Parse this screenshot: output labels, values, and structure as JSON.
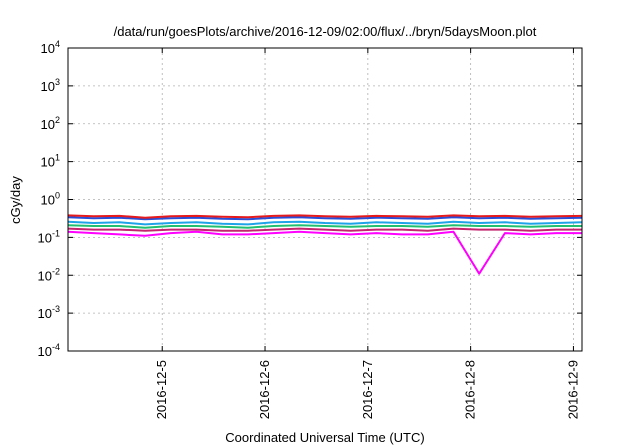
{
  "chart_data": {
    "type": "line",
    "title": "/data/run/goesPlots/archive/2016-12-09/02:00/flux/../bryn/5daysMoon.plot",
    "xlabel": "Coordinated Universal Time (UTC)",
    "ylabel": "cGy/day",
    "yscale": "log",
    "ylim": [
      0.0001,
      10000
    ],
    "xlim": [
      "2016-12-04 02:00",
      "2016-12-09 02:00"
    ],
    "grid": true,
    "x_ticks": [
      "2016-12-5",
      "2016-12-6",
      "2016-12-7",
      "2016-12-8",
      "2016-12-9"
    ],
    "y_ticks": [
      {
        "value": 0.0001,
        "base": "10",
        "exp": "-4"
      },
      {
        "value": 0.001,
        "base": "10",
        "exp": "-3"
      },
      {
        "value": 0.01,
        "base": "10",
        "exp": "-2"
      },
      {
        "value": 0.1,
        "base": "10",
        "exp": "-1"
      },
      {
        "value": 1,
        "base": "10",
        "exp": "0"
      },
      {
        "value": 10,
        "base": "10",
        "exp": "1"
      },
      {
        "value": 100,
        "base": "10",
        "exp": "2"
      },
      {
        "value": 1000,
        "base": "10",
        "exp": "3"
      },
      {
        "value": 10000,
        "base": "10",
        "exp": "4"
      }
    ],
    "x": [
      "2016-12-04 02:00",
      "2016-12-04 08:00",
      "2016-12-04 14:00",
      "2016-12-04 20:00",
      "2016-12-05 02:00",
      "2016-12-05 08:00",
      "2016-12-05 14:00",
      "2016-12-05 20:00",
      "2016-12-06 02:00",
      "2016-12-06 08:00",
      "2016-12-06 14:00",
      "2016-12-06 20:00",
      "2016-12-07 02:00",
      "2016-12-07 08:00",
      "2016-12-07 14:00",
      "2016-12-07 20:00",
      "2016-12-08 02:00",
      "2016-12-08 08:00",
      "2016-12-08 14:00",
      "2016-12-08 20:00",
      "2016-12-09 02:00"
    ],
    "series": [
      {
        "color": "#e41a1c",
        "values": [
          0.38,
          0.36,
          0.37,
          0.33,
          0.36,
          0.37,
          0.35,
          0.34,
          0.37,
          0.38,
          0.36,
          0.35,
          0.37,
          0.36,
          0.35,
          0.38,
          0.36,
          0.37,
          0.35,
          0.36,
          0.37
        ]
      },
      {
        "color": "#2a4dd7",
        "values": [
          0.34,
          0.32,
          0.33,
          0.3,
          0.32,
          0.33,
          0.31,
          0.3,
          0.33,
          0.34,
          0.32,
          0.31,
          0.33,
          0.32,
          0.31,
          0.34,
          0.32,
          0.33,
          0.31,
          0.32,
          0.33
        ]
      },
      {
        "color": "#1fa3e8",
        "values": [
          0.26,
          0.24,
          0.25,
          0.22,
          0.24,
          0.25,
          0.23,
          0.22,
          0.25,
          0.26,
          0.24,
          0.23,
          0.25,
          0.24,
          0.23,
          0.26,
          0.24,
          0.25,
          0.23,
          0.24,
          0.25
        ]
      },
      {
        "color": "#20c070",
        "values": [
          0.21,
          0.2,
          0.2,
          0.18,
          0.2,
          0.2,
          0.19,
          0.18,
          0.2,
          0.21,
          0.2,
          0.19,
          0.2,
          0.2,
          0.19,
          0.21,
          0.2,
          0.2,
          0.19,
          0.2,
          0.2
        ]
      },
      {
        "color": "#c4246e",
        "values": [
          0.17,
          0.16,
          0.16,
          0.15,
          0.16,
          0.16,
          0.15,
          0.15,
          0.16,
          0.17,
          0.16,
          0.15,
          0.16,
          0.16,
          0.15,
          0.17,
          0.16,
          0.16,
          0.15,
          0.16,
          0.16
        ]
      },
      {
        "color": "#ff00ff",
        "values": [
          0.14,
          0.13,
          0.12,
          0.11,
          0.13,
          0.14,
          0.12,
          0.12,
          0.13,
          0.14,
          0.13,
          0.12,
          0.13,
          0.12,
          0.12,
          0.14,
          0.011,
          0.13,
          0.12,
          0.13,
          0.13
        ]
      }
    ]
  }
}
